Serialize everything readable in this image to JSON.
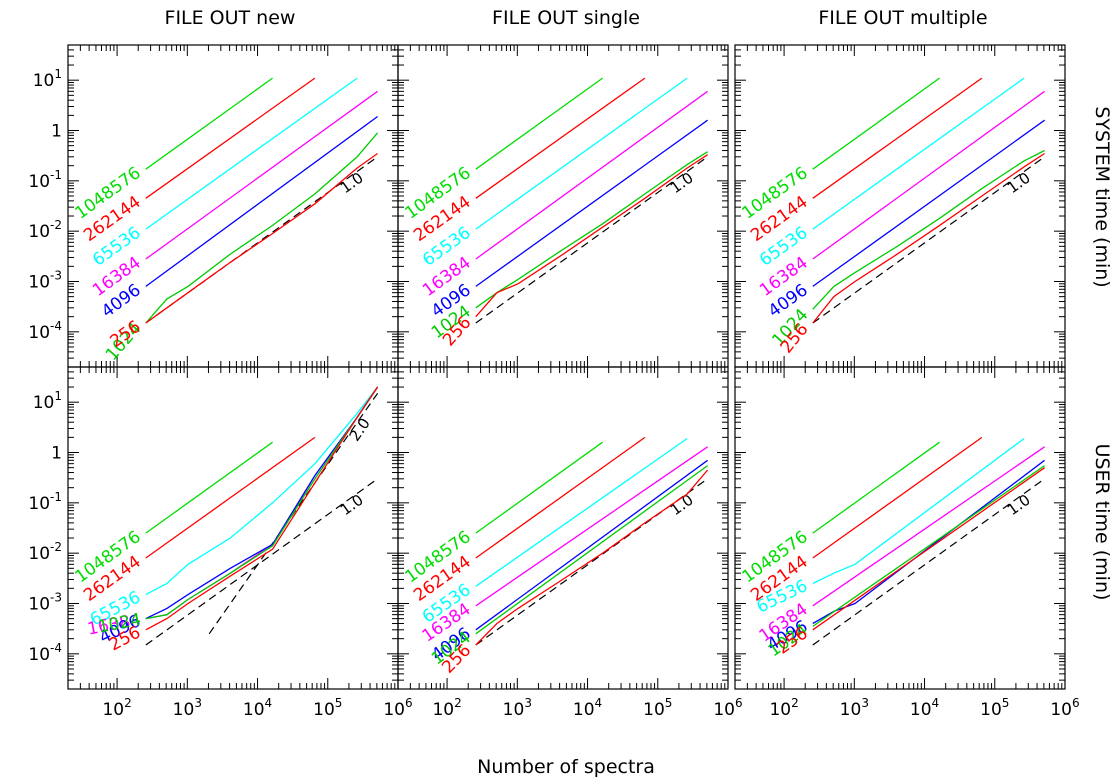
{
  "figure": {
    "xlabel": "Number of spectra",
    "row_labels": [
      "SYSTEM time (min)",
      "USER time (min)"
    ],
    "column_titles": [
      "FILE OUT new",
      "FILE OUT single",
      "FILE OUT multiple"
    ]
  },
  "colors": {
    "1048576": "#00dd00",
    "262144": "#ff0000",
    "65536": "#00ffff",
    "16384": "#ff00ff",
    "4096": "#0000ff",
    "1024": "#00cc00",
    "256": "#ff0000",
    "reference": "#000000"
  },
  "chart_data": [
    {
      "type": "line",
      "title": "FILE OUT new",
      "row_label": "SYSTEM time (min)",
      "xscale": "log",
      "yscale": "log",
      "xlim": [
        20,
        1000000
      ],
      "ylim": [
        2e-05,
        50
      ],
      "grid": false,
      "xticklabels": [],
      "yticklabels": [
        "10-4",
        "10-3",
        "10-2",
        "10-1",
        "1",
        "101"
      ],
      "series": [
        {
          "name": "1048576",
          "x": [
            256,
            16384
          ],
          "y": [
            0.17,
            11
          ]
        },
        {
          "name": "262144",
          "x": [
            256,
            65536
          ],
          "y": [
            0.045,
            11
          ]
        },
        {
          "name": "65536",
          "x": [
            256,
            262144
          ],
          "y": [
            0.011,
            11
          ]
        },
        {
          "name": "16384",
          "x": [
            256,
            512000
          ],
          "y": [
            0.0028,
            6
          ]
        },
        {
          "name": "4096",
          "x": [
            256,
            512000
          ],
          "y": [
            0.0008,
            1.9
          ]
        },
        {
          "name": "1024",
          "x": [
            256,
            512,
            1024,
            4096,
            16384,
            65536,
            262144,
            512000
          ],
          "y": [
            0.00015,
            0.00045,
            0.0008,
            0.0035,
            0.013,
            0.055,
            0.3,
            0.9
          ]
        },
        {
          "name": "256",
          "x": [
            256,
            512,
            1024,
            4096,
            16384,
            65536,
            262144,
            512000
          ],
          "y": [
            0.00015,
            0.0003,
            0.0006,
            0.0024,
            0.009,
            0.035,
            0.18,
            0.35
          ]
        }
      ],
      "reference_lines": [
        {
          "label": "1.0",
          "slope": 1.0,
          "x": [
            256,
            512000
          ],
          "y": [
            0.00015,
            0.3
          ]
        }
      ]
    },
    {
      "type": "line",
      "title": "FILE OUT single",
      "row_label": "SYSTEM time (min)",
      "xscale": "log",
      "yscale": "log",
      "xlim": [
        20,
        1000000
      ],
      "ylim": [
        2e-05,
        50
      ],
      "grid": false,
      "xticklabels": [],
      "yticklabels": [],
      "series": [
        {
          "name": "1048576",
          "x": [
            256,
            16384
          ],
          "y": [
            0.17,
            11
          ]
        },
        {
          "name": "262144",
          "x": [
            256,
            65536
          ],
          "y": [
            0.045,
            11
          ]
        },
        {
          "name": "65536",
          "x": [
            256,
            262144
          ],
          "y": [
            0.011,
            11
          ]
        },
        {
          "name": "16384",
          "x": [
            256,
            512000
          ],
          "y": [
            0.0028,
            6
          ]
        },
        {
          "name": "4096",
          "x": [
            256,
            512000
          ],
          "y": [
            0.0008,
            1.6
          ]
        },
        {
          "name": "1024",
          "x": [
            256,
            512,
            1024,
            4096,
            16384,
            65536,
            262144,
            512000
          ],
          "y": [
            0.0003,
            0.0006,
            0.0011,
            0.004,
            0.014,
            0.055,
            0.21,
            0.38
          ]
        },
        {
          "name": "256",
          "x": [
            256,
            512,
            1024,
            4096,
            16384,
            65536,
            262144,
            512000
          ],
          "y": [
            0.0002,
            0.0006,
            0.0009,
            0.0032,
            0.012,
            0.045,
            0.18,
            0.33
          ]
        }
      ],
      "reference_lines": [
        {
          "label": "1.0",
          "slope": 1.0,
          "x": [
            256,
            512000
          ],
          "y": [
            0.00015,
            0.3
          ]
        }
      ]
    },
    {
      "type": "line",
      "title": "FILE OUT multiple",
      "row_label": "SYSTEM time (min)",
      "xscale": "log",
      "yscale": "log",
      "xlim": [
        20,
        1000000
      ],
      "ylim": [
        2e-05,
        50
      ],
      "grid": false,
      "xticklabels": [],
      "yticklabels": [],
      "series": [
        {
          "name": "1048576",
          "x": [
            256,
            16384
          ],
          "y": [
            0.17,
            11
          ]
        },
        {
          "name": "262144",
          "x": [
            256,
            65536
          ],
          "y": [
            0.045,
            11
          ]
        },
        {
          "name": "65536",
          "x": [
            256,
            262144
          ],
          "y": [
            0.011,
            11
          ]
        },
        {
          "name": "16384",
          "x": [
            256,
            512000
          ],
          "y": [
            0.0028,
            6
          ]
        },
        {
          "name": "4096",
          "x": [
            256,
            512000
          ],
          "y": [
            0.0008,
            1.6
          ]
        },
        {
          "name": "1024",
          "x": [
            256,
            512,
            1024,
            4096,
            16384,
            65536,
            262144,
            512000
          ],
          "y": [
            0.00028,
            0.0008,
            0.0015,
            0.005,
            0.018,
            0.07,
            0.25,
            0.4
          ]
        },
        {
          "name": "256",
          "x": [
            256,
            512,
            1024,
            4096,
            16384,
            65536,
            262144,
            512000
          ],
          "y": [
            0.00015,
            0.0005,
            0.001,
            0.0035,
            0.013,
            0.05,
            0.19,
            0.35
          ]
        }
      ],
      "reference_lines": [
        {
          "label": "1.0",
          "slope": 1.0,
          "x": [
            256,
            512000
          ],
          "y": [
            0.00015,
            0.3
          ]
        }
      ]
    },
    {
      "type": "line",
      "title": "",
      "row_label": "USER time (min)",
      "xscale": "log",
      "yscale": "log",
      "xlim": [
        20,
        1000000
      ],
      "ylim": [
        2e-05,
        50
      ],
      "grid": false,
      "xticklabels": [
        "102",
        "103",
        "104",
        "105",
        "106"
      ],
      "yticklabels": [
        "10-4",
        "10-3",
        "10-2",
        "10-1",
        "1",
        "101"
      ],
      "series": [
        {
          "name": "1048576",
          "x": [
            256,
            16384
          ],
          "y": [
            0.025,
            1.6
          ]
        },
        {
          "name": "262144",
          "x": [
            256,
            65536
          ],
          "y": [
            0.008,
            2.0
          ]
        },
        {
          "name": "65536",
          "x": [
            256,
            512,
            1024,
            4096,
            16384,
            65536,
            262144,
            512000
          ],
          "y": [
            0.0015,
            0.0025,
            0.006,
            0.02,
            0.1,
            0.6,
            6,
            20
          ]
        },
        {
          "name": "16384",
          "x": [
            256,
            512,
            1024,
            4096,
            16384,
            65536,
            262144,
            512000
          ],
          "y": [
            0.0005,
            0.0006,
            0.0012,
            0.004,
            0.015,
            0.3,
            5,
            20
          ]
        },
        {
          "name": "4096",
          "x": [
            256,
            512,
            1024,
            4096,
            16384,
            65536,
            262144,
            512000
          ],
          "y": [
            0.0005,
            0.0008,
            0.0015,
            0.005,
            0.015,
            0.35,
            5,
            20
          ]
        },
        {
          "name": "1024",
          "x": [
            256,
            512,
            1024,
            4096,
            16384,
            65536,
            262144,
            512000
          ],
          "y": [
            0.0005,
            0.0006,
            0.0012,
            0.004,
            0.014,
            0.3,
            5,
            20
          ]
        },
        {
          "name": "256",
          "x": [
            256,
            512,
            1024,
            4096,
            16384,
            65536,
            262144,
            512000
          ],
          "y": [
            0.0003,
            0.0005,
            0.001,
            0.0035,
            0.012,
            0.25,
            5,
            20
          ]
        }
      ],
      "reference_lines": [
        {
          "label": "1.0",
          "slope": 1.0,
          "x": [
            256,
            512000
          ],
          "y": [
            0.00015,
            0.3
          ]
        },
        {
          "label": "2.0",
          "slope": 2.0,
          "x": [
            2048,
            512000
          ],
          "y": [
            0.00025,
            15
          ]
        }
      ]
    },
    {
      "type": "line",
      "title": "",
      "row_label": "USER time (min)",
      "xscale": "log",
      "yscale": "log",
      "xlim": [
        20,
        1000000
      ],
      "ylim": [
        2e-05,
        50
      ],
      "grid": false,
      "xticklabels": [
        "102",
        "103",
        "104",
        "105",
        "106"
      ],
      "yticklabels": [],
      "series": [
        {
          "name": "1048576",
          "x": [
            256,
            16384
          ],
          "y": [
            0.025,
            1.6
          ]
        },
        {
          "name": "262144",
          "x": [
            256,
            65536
          ],
          "y": [
            0.008,
            2.0
          ]
        },
        {
          "name": "65536",
          "x": [
            256,
            262144
          ],
          "y": [
            0.0022,
            1.9
          ]
        },
        {
          "name": "16384",
          "x": [
            256,
            512000
          ],
          "y": [
            0.0009,
            1.3
          ]
        },
        {
          "name": "4096",
          "x": [
            256,
            512000
          ],
          "y": [
            0.0003,
            0.7
          ]
        },
        {
          "name": "1024",
          "x": [
            256,
            512000
          ],
          "y": [
            0.00025,
            0.55
          ]
        },
        {
          "name": "256",
          "x": [
            256,
            512,
            1024,
            4096,
            16384,
            65536,
            262144,
            512000
          ],
          "y": [
            0.00015,
            0.0004,
            0.0008,
            0.0028,
            0.01,
            0.04,
            0.15,
            0.45
          ]
        }
      ],
      "reference_lines": [
        {
          "label": "1.0",
          "slope": 1.0,
          "x": [
            256,
            512000
          ],
          "y": [
            0.00015,
            0.3
          ]
        }
      ]
    },
    {
      "type": "line",
      "title": "",
      "row_label": "USER time (min)",
      "xscale": "log",
      "yscale": "log",
      "xlim": [
        20,
        1000000
      ],
      "ylim": [
        2e-05,
        50
      ],
      "grid": false,
      "xticklabels": [
        "102",
        "103",
        "104",
        "105",
        "106"
      ],
      "yticklabels": [],
      "series": [
        {
          "name": "1048576",
          "x": [
            256,
            16384
          ],
          "y": [
            0.025,
            1.6
          ]
        },
        {
          "name": "262144",
          "x": [
            256,
            65536
          ],
          "y": [
            0.008,
            2.0
          ]
        },
        {
          "name": "65536",
          "x": [
            256,
            512,
            1024,
            262144
          ],
          "y": [
            0.0025,
            0.004,
            0.006,
            1.9
          ]
        },
        {
          "name": "16384",
          "x": [
            256,
            512000
          ],
          "y": [
            0.0009,
            1.3
          ]
        },
        {
          "name": "4096",
          "x": [
            256,
            512,
            1024,
            512000
          ],
          "y": [
            0.0004,
            0.0007,
            0.001,
            0.7
          ]
        },
        {
          "name": "1024",
          "x": [
            256,
            512000
          ],
          "y": [
            0.00035,
            0.55
          ]
        },
        {
          "name": "256",
          "x": [
            256,
            512000
          ],
          "y": [
            0.0003,
            0.5
          ]
        }
      ],
      "reference_lines": [
        {
          "label": "1.0",
          "slope": 1.0,
          "x": [
            256,
            512000
          ],
          "y": [
            0.00015,
            0.3
          ]
        }
      ]
    }
  ]
}
